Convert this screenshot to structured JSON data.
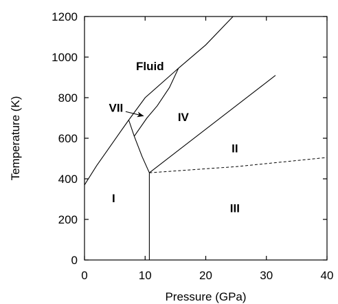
{
  "chart_data": {
    "type": "line",
    "title": "",
    "xlabel": "Pressure (GPa)",
    "ylabel": "Temperature (K)",
    "xlim": [
      0,
      40
    ],
    "ylim": [
      0,
      1200
    ],
    "xticks": [
      0,
      10,
      20,
      30,
      40
    ],
    "yticks": [
      0,
      200,
      400,
      600,
      800,
      1000,
      1200
    ],
    "grid": false,
    "legend": "none",
    "series": [
      {
        "style": "solid",
        "points": [
          [
            0,
            370
          ],
          [
            2,
            465
          ],
          [
            4,
            550
          ],
          [
            6,
            635
          ],
          [
            7.3,
            690
          ]
        ]
      },
      {
        "style": "solid",
        "points": [
          [
            7.3,
            690
          ],
          [
            10,
            800
          ],
          [
            15.5,
            945
          ],
          [
            20,
            1060
          ],
          [
            24.5,
            1200
          ]
        ]
      },
      {
        "style": "solid",
        "points": [
          [
            8.2,
            610
          ],
          [
            10.3,
            700
          ],
          [
            12,
            760
          ],
          [
            14,
            850
          ],
          [
            15.5,
            945
          ]
        ]
      },
      {
        "style": "solid",
        "points": [
          [
            7.3,
            690
          ],
          [
            8.2,
            610
          ],
          [
            9.5,
            510
          ],
          [
            10.7,
            430
          ]
        ]
      },
      {
        "style": "solid",
        "points": [
          [
            10.7,
            430
          ],
          [
            10.7,
            0
          ]
        ]
      },
      {
        "style": "solid",
        "points": [
          [
            10.7,
            430
          ],
          [
            31.5,
            910
          ]
        ]
      },
      {
        "style": "dashed",
        "points": [
          [
            10.7,
            430
          ],
          [
            25,
            460
          ],
          [
            40,
            505
          ]
        ]
      }
    ],
    "annotations": [
      {
        "text": "Fluid",
        "x": 10.8,
        "y": 950,
        "arrow": false
      },
      {
        "text": "VII",
        "x": 5.2,
        "y": 745,
        "arrow": true,
        "arrow_to": [
          9.7,
          710
        ]
      },
      {
        "text": "IV",
        "x": 16.3,
        "y": 700,
        "arrow": false
      },
      {
        "text": "II",
        "x": 24.8,
        "y": 545,
        "arrow": false
      },
      {
        "text": "I",
        "x": 4.8,
        "y": 300,
        "arrow": false
      },
      {
        "text": "III",
        "x": 24.8,
        "y": 250,
        "arrow": false
      }
    ]
  }
}
